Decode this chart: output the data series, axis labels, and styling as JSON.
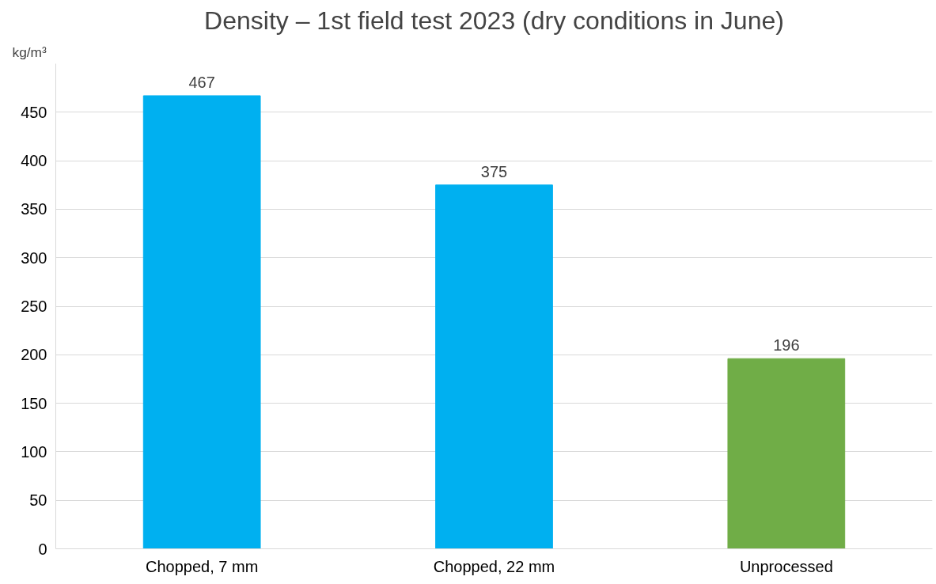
{
  "chart_data": {
    "type": "bar",
    "title": "Density – 1st field test 2023 (dry conditions in June)",
    "ylabel": "kg/m³",
    "categories": [
      "Chopped, 7 mm",
      "Chopped, 22 mm",
      "Unprocessed"
    ],
    "values": [
      467,
      375,
      196
    ],
    "colors": [
      "#00b0f0",
      "#00b0f0",
      "#70ad47"
    ],
    "ylim": [
      0,
      500
    ],
    "yticks": [
      0,
      50,
      100,
      150,
      200,
      250,
      300,
      350,
      400,
      450
    ],
    "grid": "y",
    "data_labels": true
  }
}
